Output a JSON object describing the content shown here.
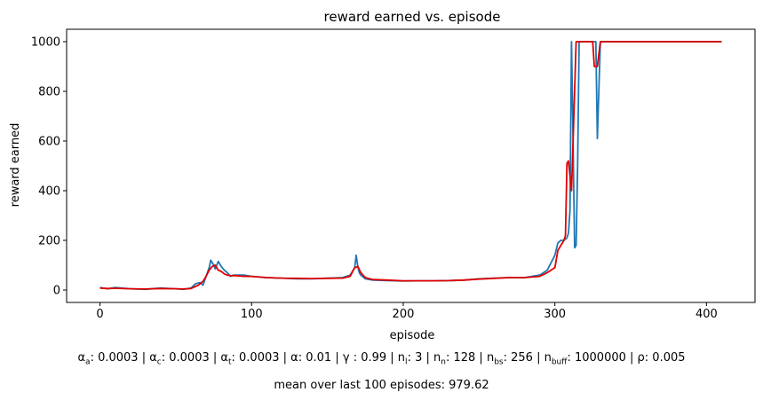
{
  "chart_data": {
    "type": "line",
    "title": "reward earned vs. episode",
    "xlabel": "episode",
    "ylabel": "reward earned",
    "xlim": [
      -22,
      432
    ],
    "ylim": [
      -50,
      1050
    ],
    "xticks": [
      0,
      100,
      200,
      300,
      400
    ],
    "yticks": [
      0,
      200,
      400,
      600,
      800,
      1000
    ],
    "grid": false,
    "series": [
      {
        "color": "#1f77b4",
        "x": [
          0,
          5,
          10,
          20,
          30,
          40,
          50,
          55,
          60,
          63,
          66,
          68,
          70,
          72,
          73,
          75,
          76,
          78,
          80,
          82,
          84,
          86,
          88,
          90,
          95,
          100,
          110,
          120,
          130,
          140,
          150,
          160,
          165,
          168,
          169,
          170,
          171,
          172,
          175,
          180,
          190,
          200,
          210,
          220,
          230,
          240,
          250,
          260,
          270,
          280,
          290,
          295,
          300,
          302,
          304,
          306,
          308,
          309,
          310,
          311,
          312,
          313,
          314,
          315,
          316,
          318,
          320,
          322,
          324,
          326,
          327,
          328,
          330,
          340,
          360,
          380,
          400,
          410
        ],
        "y": [
          10,
          5,
          10,
          5,
          3,
          8,
          5,
          3,
          8,
          25,
          30,
          20,
          55,
          90,
          120,
          100,
          85,
          115,
          95,
          80,
          70,
          55,
          60,
          60,
          60,
          55,
          50,
          48,
          45,
          45,
          48,
          50,
          60,
          90,
          140,
          95,
          70,
          60,
          45,
          40,
          38,
          36,
          37,
          37,
          38,
          40,
          45,
          48,
          50,
          50,
          60,
          80,
          140,
          190,
          200,
          200,
          210,
          230,
          320,
          1000,
          600,
          170,
          180,
          500,
          1000,
          1000,
          1000,
          1000,
          1000,
          1000,
          1000,
          610,
          1000,
          1000,
          1000,
          1000,
          1000,
          1000
        ]
      },
      {
        "color": "#e00000",
        "x": [
          0,
          5,
          10,
          20,
          30,
          40,
          50,
          55,
          60,
          65,
          68,
          70,
          72,
          74,
          76,
          78,
          80,
          82,
          84,
          86,
          90,
          95,
          100,
          110,
          120,
          130,
          140,
          150,
          160,
          165,
          168,
          170,
          172,
          175,
          180,
          190,
          200,
          210,
          220,
          230,
          240,
          250,
          260,
          270,
          280,
          290,
          295,
          300,
          302,
          304,
          306,
          307,
          308,
          309,
          310,
          311,
          312,
          314,
          316,
          318,
          320,
          322,
          324,
          325,
          326,
          327,
          328,
          330,
          340,
          360,
          380,
          400,
          410
        ],
        "y": [
          8,
          6,
          7,
          5,
          4,
          6,
          5,
          4,
          6,
          20,
          35,
          55,
          80,
          95,
          100,
          80,
          75,
          65,
          60,
          58,
          58,
          55,
          55,
          50,
          48,
          47,
          46,
          47,
          48,
          55,
          90,
          95,
          70,
          50,
          42,
          40,
          37,
          37,
          37,
          38,
          40,
          44,
          47,
          50,
          50,
          55,
          70,
          90,
          160,
          180,
          200,
          220,
          510,
          520,
          460,
          400,
          600,
          1000,
          1000,
          1000,
          1000,
          1000,
          1000,
          1000,
          900,
          900,
          900,
          1000,
          1000,
          1000,
          1000,
          1000,
          1000
        ]
      }
    ]
  },
  "caption": {
    "params": [
      {
        "sym": "α",
        "sub": "a",
        "val": ": 0.0003 | "
      },
      {
        "sym": "α",
        "sub": "c",
        "val": ": 0.0003 | "
      },
      {
        "sym": "α",
        "sub": "t",
        "val": ": 0.0003 | "
      },
      {
        "sym": "α",
        "sub": "",
        "val": ": 0.01 | "
      },
      {
        "sym": "γ",
        "sub": "",
        "val": " : 0.99 | "
      },
      {
        "sym": "n",
        "sub": "l",
        "val": ": 3 | "
      },
      {
        "sym": "n",
        "sub": "n",
        "val": ": 128 | "
      },
      {
        "sym": "n",
        "sub": "bs",
        "val": ": 256 | "
      },
      {
        "sym": "n",
        "sub": "buff",
        "val": ": 1000000 | "
      },
      {
        "sym": "ρ",
        "sub": "",
        "val": ": 0.005"
      }
    ],
    "summary": "mean over last 100 episodes: 979.62"
  }
}
